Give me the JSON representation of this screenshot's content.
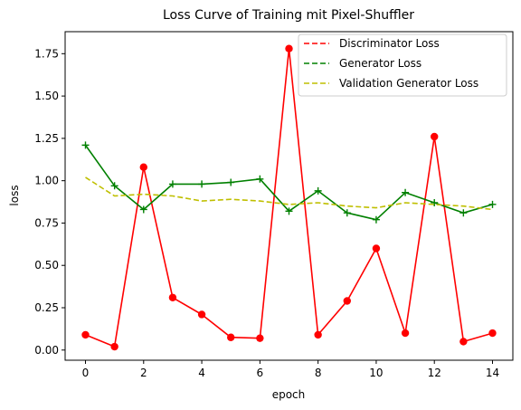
{
  "chart_data": {
    "type": "line",
    "title": "Loss Curve of Training mit Pixel-Shuffler",
    "xlabel": "epoch",
    "ylabel": "loss",
    "x": [
      0,
      1,
      2,
      3,
      4,
      5,
      6,
      7,
      8,
      9,
      10,
      11,
      12,
      13,
      14
    ],
    "xlim": [
      -0.7,
      14.7
    ],
    "ylim": [
      -0.06,
      1.88
    ],
    "xticks": [
      0,
      2,
      4,
      6,
      8,
      10,
      12,
      14
    ],
    "yticks": [
      0.0,
      0.25,
      0.5,
      0.75,
      1.0,
      1.25,
      1.5,
      1.75
    ],
    "ytick_labels": [
      "0.00",
      "0.25",
      "0.50",
      "0.75",
      "1.00",
      "1.25",
      "1.50",
      "1.75"
    ],
    "grid": false,
    "legend_position": "top-right",
    "series": [
      {
        "name": "Discriminator Loss",
        "color": "#ff0000",
        "line_style": "solid",
        "marker": "circle",
        "legend_style": "dashed",
        "values": [
          0.09,
          0.02,
          1.08,
          0.31,
          0.21,
          0.075,
          0.07,
          1.78,
          0.09,
          0.29,
          0.6,
          0.1,
          1.26,
          0.05,
          0.1
        ]
      },
      {
        "name": "Generator Loss",
        "color": "#008000",
        "line_style": "solid",
        "marker": "plus",
        "legend_style": "dashed",
        "values": [
          1.21,
          0.97,
          0.83,
          0.98,
          0.98,
          0.99,
          1.01,
          0.82,
          0.94,
          0.81,
          0.77,
          0.93,
          0.87,
          0.81,
          0.86
        ]
      },
      {
        "name": "Validation Generator Loss",
        "color": "#bfbf00",
        "line_style": "dashed",
        "marker": "none",
        "legend_style": "dashed",
        "values": [
          1.02,
          0.91,
          0.92,
          0.91,
          0.88,
          0.89,
          0.88,
          0.86,
          0.87,
          0.85,
          0.84,
          0.87,
          0.86,
          0.85,
          0.83
        ]
      }
    ]
  }
}
